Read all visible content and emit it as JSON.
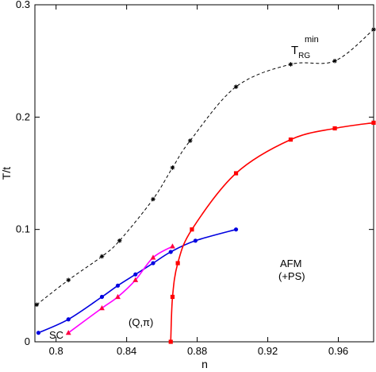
{
  "chart_data": {
    "type": "line",
    "xlabel": "n",
    "ylabel": "T/t",
    "xlim": [
      0.788,
      0.98
    ],
    "ylim": [
      0,
      0.3
    ],
    "x_ticks": [
      0.8,
      0.84,
      0.88,
      0.92,
      0.96
    ],
    "x_tick_labels": [
      "0.8",
      "0.84",
      "0.88",
      "0.92",
      "0.96"
    ],
    "y_ticks": [
      0,
      0.1,
      0.2,
      0.3
    ],
    "y_tick_labels": [
      "0",
      "0.1",
      "0.2",
      "0.3"
    ],
    "grid": false,
    "series": [
      {
        "key": "trg",
        "color": "#000000",
        "dash": "dashed",
        "marker": "star",
        "x": [
          0.789,
          0.807,
          0.826,
          0.836,
          0.855,
          0.866,
          0.876,
          0.902,
          0.933,
          0.958,
          0.98
        ],
        "y": [
          0.033,
          0.055,
          0.076,
          0.09,
          0.127,
          0.155,
          0.179,
          0.227,
          0.247,
          0.25,
          0.278
        ]
      },
      {
        "key": "sc",
        "color": "#0000e0",
        "dash": "solid",
        "marker": "circle",
        "x": [
          0.79,
          0.807,
          0.826,
          0.835,
          0.845,
          0.855,
          0.865,
          0.879,
          0.902
        ],
        "y": [
          0.008,
          0.02,
          0.04,
          0.05,
          0.06,
          0.07,
          0.08,
          0.09,
          0.1
        ]
      },
      {
        "key": "qpi",
        "color": "#ff00ff",
        "dash": "solid",
        "marker": "triangle",
        "x": [
          0.807,
          0.826,
          0.835,
          0.845,
          0.855,
          0.866
        ],
        "y": [
          0.008,
          0.03,
          0.04,
          0.055,
          0.075,
          0.085
        ]
      },
      {
        "key": "afm",
        "color": "#ff0000",
        "dash": "solid",
        "marker": "square",
        "x": [
          0.865,
          0.866,
          0.869,
          0.877,
          0.902,
          0.933,
          0.958,
          0.98
        ],
        "y": [
          0.0,
          0.04,
          0.07,
          0.1,
          0.15,
          0.18,
          0.19,
          0.195
        ]
      }
    ],
    "annotations": {
      "trg_main": "T",
      "trg_sub": "RG",
      "trg_sup": "min",
      "afm_line1": "AFM",
      "afm_line2": "(+PS)",
      "qpi": "(Q,π)",
      "sc": "SC"
    }
  }
}
